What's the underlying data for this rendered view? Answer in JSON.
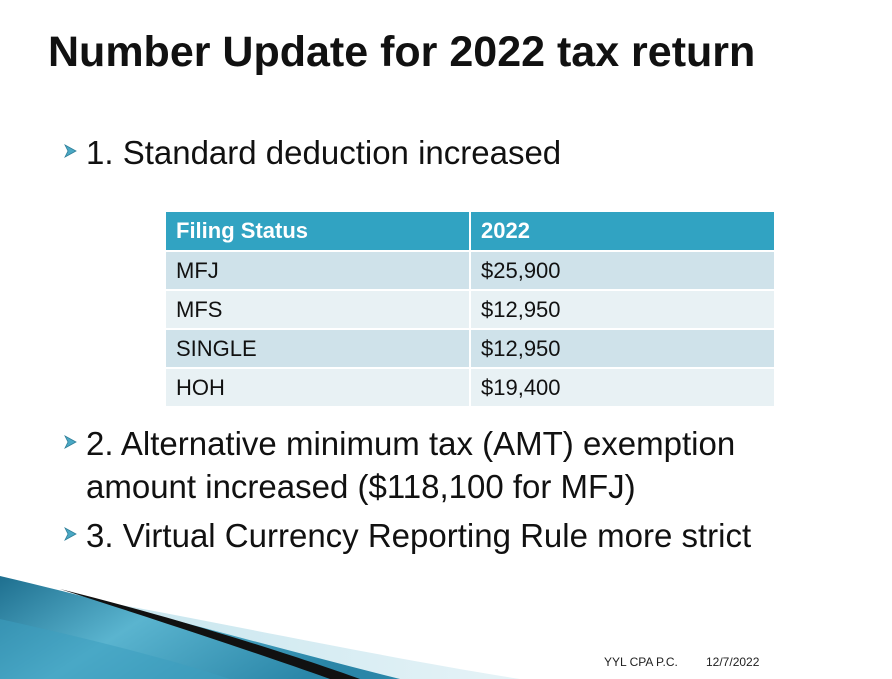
{
  "title": "Number Update for 2022 tax return",
  "bullets": [
    {
      "icon": "arrow-bullet-icon",
      "text": "1. Standard deduction increased"
    },
    {
      "icon": "arrow-bullet-icon",
      "text": "2. Alternative minimum tax (AMT) exemption amount increased ($118,100  for MFJ)"
    },
    {
      "icon": "arrow-bullet-icon",
      "text": "3. Virtual Currency Reporting Rule more strict"
    }
  ],
  "table": {
    "headers": [
      "Filing Status",
      "2022"
    ],
    "rows": [
      [
        "MFJ",
        "$25,900"
      ],
      [
        "MFS",
        "$12,950"
      ],
      [
        "SINGLE",
        "$12,950"
      ],
      [
        "HOH",
        "$19,400"
      ]
    ]
  },
  "footer": {
    "organization": "YYL CPA P.C.",
    "date": "12/7/2022"
  },
  "colors": {
    "table_header": "#31a3c2",
    "row_dark": "#cfe2ea",
    "row_light": "#e8f1f4",
    "bullet_arrow": "#4aa8c4"
  }
}
